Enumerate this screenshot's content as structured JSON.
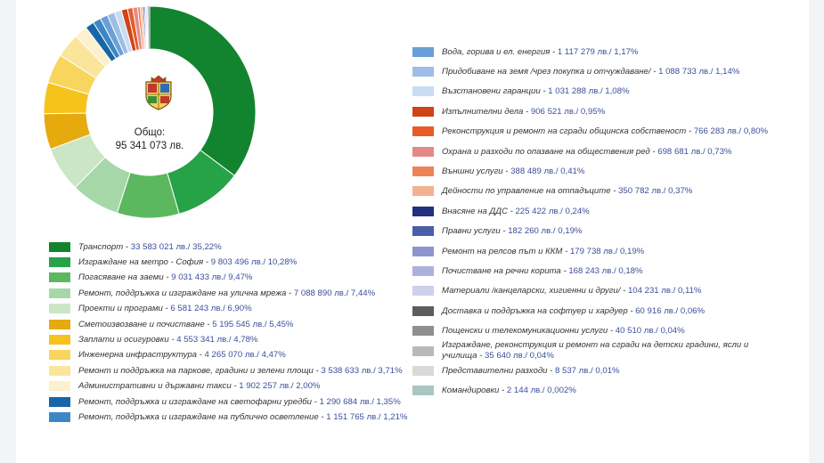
{
  "total": {
    "label": "Общо:",
    "value": "95 341 073 лв."
  },
  "chart_data": {
    "type": "pie",
    "donut": true,
    "title": "",
    "unit": "лв.",
    "slices": [
      {
        "name": "Транспорт",
        "value": 33583021,
        "value_text": "33 583 021 лв./ 35,22%",
        "percent": 35.22,
        "color": "#12832e",
        "column": "left"
      },
      {
        "name": "Изграждане на метро - София",
        "value": 9803496,
        "value_text": "9 803 496 лв./ 10,28%",
        "percent": 10.28,
        "color": "#26a247",
        "column": "left"
      },
      {
        "name": "Погасяване на заеми",
        "value": 9031433,
        "value_text": "9 031 433 лв./ 9,47%",
        "percent": 9.47,
        "color": "#5cb85e",
        "column": "left"
      },
      {
        "name": "Ремонт, поддръжка и изграждане на улична мрежа",
        "value": 7088890,
        "value_text": "7 088 890 лв./ 7,44%",
        "percent": 7.44,
        "color": "#a6d7a8",
        "column": "left"
      },
      {
        "name": "Проекти и програми",
        "value": 6581243,
        "value_text": "6 581 243 лв./ 6,90%",
        "percent": 6.9,
        "color": "#cbe6c4",
        "column": "left"
      },
      {
        "name": "Сметоизвозване и почистване",
        "value": 5195545,
        "value_text": "5 195 545 лв./ 5,45%",
        "percent": 5.45,
        "color": "#e6a90e",
        "column": "left"
      },
      {
        "name": "Заплати и осигуровки",
        "value": 4553341,
        "value_text": "4 553 341 лв./ 4,78%",
        "percent": 4.78,
        "color": "#f6c21c",
        "column": "left"
      },
      {
        "name": "Инженерна инфраструктура",
        "value": 4265070,
        "value_text": "4 265 070 лв./ 4,47%",
        "percent": 4.47,
        "color": "#f8d55c",
        "column": "left"
      },
      {
        "name": "Ремонт и поддръжка на паркове, градини и зелени площи",
        "value": 3538633,
        "value_text": "3 538 633 лв./ 3,71%",
        "percent": 3.71,
        "color": "#fbe59b",
        "column": "left"
      },
      {
        "name": "Административни и държавни такси",
        "value": 1902257,
        "value_text": "1 902 257 лв./ 2,00%",
        "percent": 2.0,
        "color": "#fcf1cc",
        "column": "left"
      },
      {
        "name": "Ремонт, поддръжка и изграждане на светофарни уредби",
        "value": 1290684,
        "value_text": "1 290 684 лв./ 1,35%",
        "percent": 1.35,
        "color": "#1766a8",
        "column": "left"
      },
      {
        "name": "Ремонт, поддръжка и изграждане на публично осветление",
        "value": 1151765,
        "value_text": "1 151 765 лв./ 1,21%",
        "percent": 1.21,
        "color": "#3d86c6",
        "column": "left"
      },
      {
        "name": "Вода, горива и ел. енергия",
        "value": 1117279,
        "value_text": "1 117 279 лв./ 1,17%",
        "percent": 1.17,
        "color": "#6b9fd7",
        "column": "right"
      },
      {
        "name": "Придобиване на земя /чрез покупка и отчуждаване/",
        "value": 1088733,
        "value_text": "1 088 733 лв./ 1,14%",
        "percent": 1.14,
        "color": "#9dbde6",
        "column": "right"
      },
      {
        "name": "Възстановени гаранции",
        "value": 1031288,
        "value_text": "1 031 288 лв./ 1,08%",
        "percent": 1.08,
        "color": "#c9dcf2",
        "column": "right"
      },
      {
        "name": "Изпълнителни дела",
        "value": 906521,
        "value_text": "906 521 лв./ 0,95%",
        "percent": 0.95,
        "color": "#cf4417",
        "column": "right"
      },
      {
        "name": "Реконструкция и ремонт на сгради общинска собственост",
        "value": 766283,
        "value_text": "766 283 лв./ 0,80%",
        "percent": 0.8,
        "color": "#ea5b2a",
        "column": "right"
      },
      {
        "name": "Охрана и разходи по опазване на обществения ред",
        "value": 698681,
        "value_text": "698 681 лв./ 0,73%",
        "percent": 0.73,
        "color": "#e48a86",
        "column": "right"
      },
      {
        "name": "Външни услуги",
        "value": 388489,
        "value_text": "388 489 лв./ 0,41%",
        "percent": 0.41,
        "color": "#ef8358",
        "column": "right"
      },
      {
        "name": "Дейности по управление на отпадъците",
        "value": 350782,
        "value_text": "350 782 лв./ 0,37%",
        "percent": 0.37,
        "color": "#f3b193",
        "column": "right"
      },
      {
        "name": "Внасяне на ДДС",
        "value": 225422,
        "value_text": "225 422 лв./ 0,24%",
        "percent": 0.24,
        "color": "#22307f",
        "column": "right"
      },
      {
        "name": "Правни услуги",
        "value": 182260,
        "value_text": "182 260 лв./ 0,19%",
        "percent": 0.19,
        "color": "#4b5ea8",
        "column": "right"
      },
      {
        "name": "Ремонт на релсов път и ККМ",
        "value": 179738,
        "value_text": "179 738 лв./ 0,19%",
        "percent": 0.19,
        "color": "#8c96cc",
        "column": "right"
      },
      {
        "name": "Почистване на речни корита",
        "value": 168243,
        "value_text": "168 243 лв./ 0,18%",
        "percent": 0.18,
        "color": "#aab2dc",
        "column": "right"
      },
      {
        "name": "Материали /канцеларски, хигиенни и други/",
        "value": 104231,
        "value_text": "104 231 лв./ 0,11%",
        "percent": 0.11,
        "color": "#ccd0ea",
        "column": "right"
      },
      {
        "name": "Доставка и поддръжка на софтуер и хардуер",
        "value": 60916,
        "value_text": "60 916 лв./ 0,06%",
        "percent": 0.06,
        "color": "#5d5d5d",
        "column": "right"
      },
      {
        "name": "Пощенски и телекомуникационни услуги",
        "value": 40510,
        "value_text": "40 510 лв./ 0,04%",
        "percent": 0.04,
        "color": "#8f8f8f",
        "column": "right"
      },
      {
        "name": "Изграждане, реконструкция и ремонт на сгради на детски градини, ясли и училища -",
        "value": 35640,
        "value_text": "35 640 лв./ 0,04%",
        "percent": 0.04,
        "color": "#b9b9b9",
        "column": "right"
      },
      {
        "name": "Представителни разходи",
        "value": 8537,
        "value_text": "8 537 лв./ 0,01%",
        "percent": 0.01,
        "color": "#d9d9d9",
        "column": "right"
      },
      {
        "name": "Командировки",
        "value": 2144,
        "value_text": "2 144 лв./ 0,002%",
        "percent": 0.002,
        "color": "#a9c6c1",
        "column": "right"
      }
    ]
  }
}
